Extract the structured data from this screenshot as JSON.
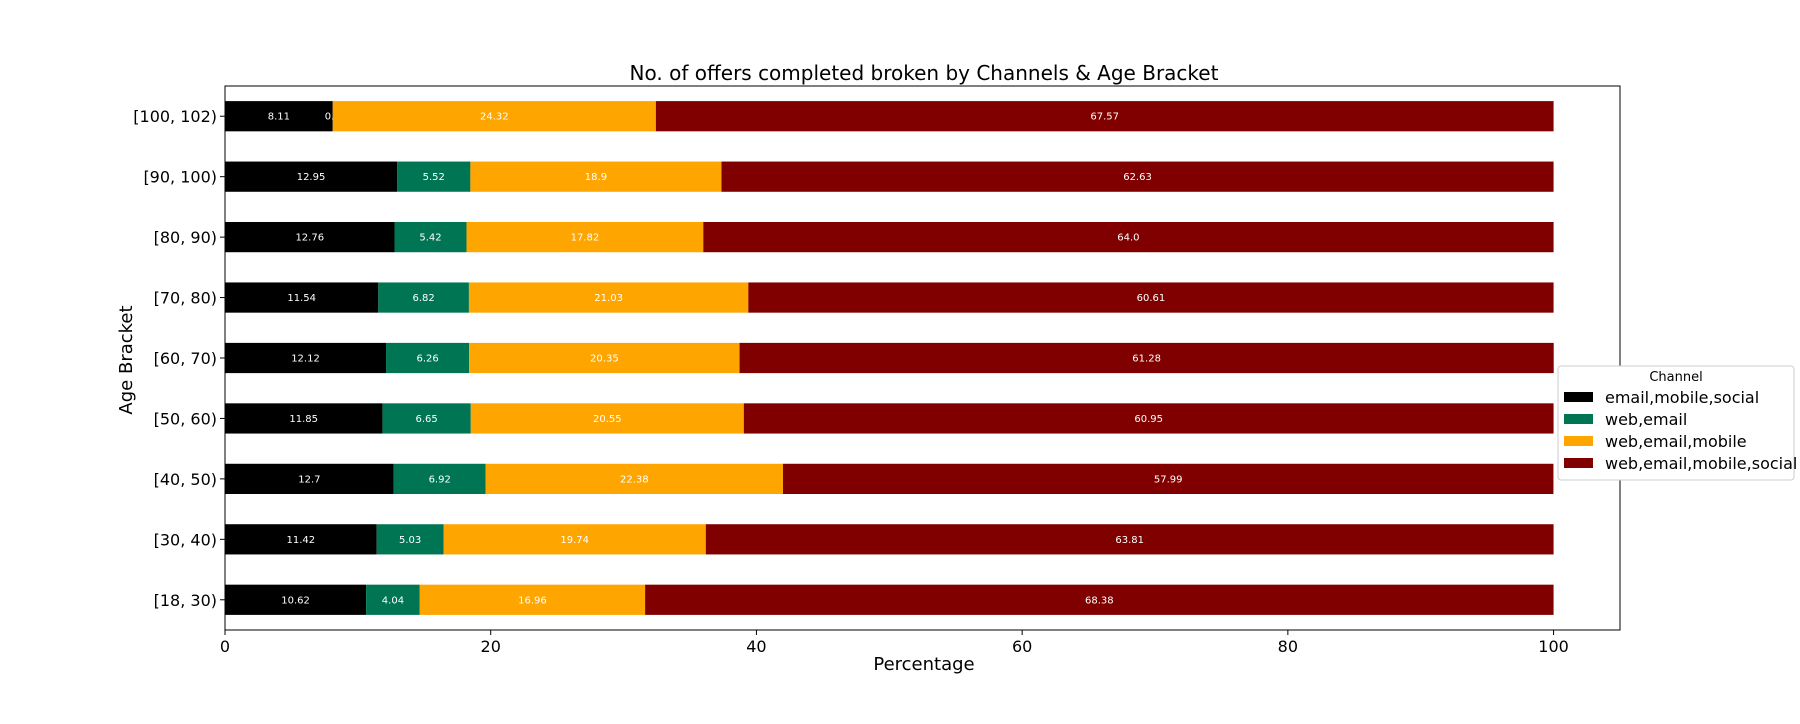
{
  "chart_data": {
    "type": "bar",
    "orientation": "horizontal",
    "stacked": true,
    "title": "No. of offers completed broken by Channels & Age Bracket",
    "xlabel": "Percentage",
    "ylabel": "Age Bracket",
    "xlim": [
      0,
      105
    ],
    "xticks": [
      0,
      20,
      40,
      60,
      80,
      100
    ],
    "grid": false,
    "legend": {
      "title": "Channel",
      "placement": "right"
    },
    "categories": [
      "[18, 30)",
      "[30, 40)",
      "[40, 50)",
      "[50, 60)",
      "[60, 70)",
      "[70, 80)",
      "[80, 90)",
      "[90, 100)",
      "[100, 102)"
    ],
    "series": [
      {
        "name": "email,mobile,social",
        "color": "#000000",
        "label_color": "#ffffff",
        "values": [
          10.62,
          11.42,
          12.7,
          11.85,
          12.12,
          11.54,
          12.76,
          12.95,
          8.11
        ],
        "labels": [
          "10.62",
          "11.42",
          "12.7",
          "11.85",
          "12.12",
          "11.54",
          "12.76",
          "12.95",
          "8.11"
        ]
      },
      {
        "name": "web,email",
        "color": "#007554",
        "label_color": "#ffffff",
        "values": [
          4.04,
          5.03,
          6.92,
          6.65,
          6.26,
          6.82,
          5.42,
          5.52,
          0.0
        ],
        "labels": [
          "4.04",
          "5.03",
          "6.92",
          "6.65",
          "6.26",
          "6.82",
          "5.42",
          "5.52",
          "0.0"
        ]
      },
      {
        "name": "web,email,mobile",
        "color": "#ffa500",
        "label_color": "#ffffff",
        "values": [
          16.96,
          19.74,
          22.38,
          20.55,
          20.35,
          21.03,
          17.82,
          18.9,
          24.32
        ],
        "labels": [
          "16.96",
          "19.74",
          "22.38",
          "20.55",
          "20.35",
          "21.03",
          "17.82",
          "18.9",
          "24.32"
        ]
      },
      {
        "name": "web,email,mobile,social",
        "color": "#800000",
        "label_color": "#ffffff",
        "values": [
          68.38,
          63.81,
          57.99,
          60.95,
          61.28,
          60.61,
          64.0,
          62.63,
          67.57
        ],
        "labels": [
          "68.38",
          "63.81",
          "57.99",
          "60.95",
          "61.28",
          "60.61",
          "64.0",
          "62.63",
          "67.57"
        ]
      }
    ]
  }
}
